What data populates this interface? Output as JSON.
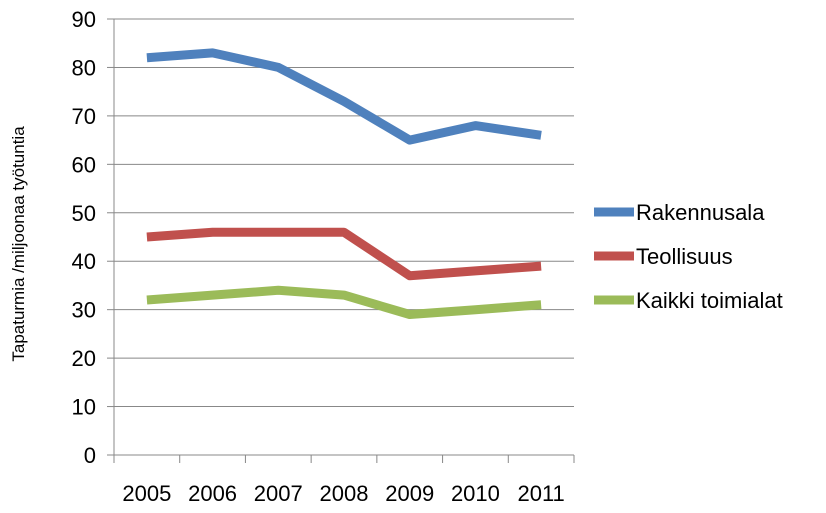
{
  "chart_data": {
    "type": "line",
    "categories": [
      "2005",
      "2006",
      "2007",
      "2008",
      "2009",
      "2010",
      "2011"
    ],
    "series": [
      {
        "name": "Rakennusala",
        "values": [
          82,
          83,
          80,
          73,
          65,
          68,
          66
        ],
        "color": "#4f81bd"
      },
      {
        "name": "Teollisuus",
        "values": [
          45,
          46,
          46,
          46,
          37,
          38,
          39
        ],
        "color": "#c0504d"
      },
      {
        "name": "Kaikki toimialat",
        "values": [
          32,
          33,
          34,
          33,
          29,
          30,
          31
        ],
        "color": "#9bbb59"
      }
    ],
    "y_ticks": [
      "0",
      "10",
      "20",
      "30",
      "40",
      "50",
      "60",
      "70",
      "80",
      "90"
    ],
    "ylabel": "Tapaturmia /miljoonaa työtuntia",
    "xlabel": "",
    "title": "",
    "ylim": [
      0,
      90
    ],
    "grid": "horizontal",
    "legend_position": "right",
    "gridline_color": "#888888"
  }
}
